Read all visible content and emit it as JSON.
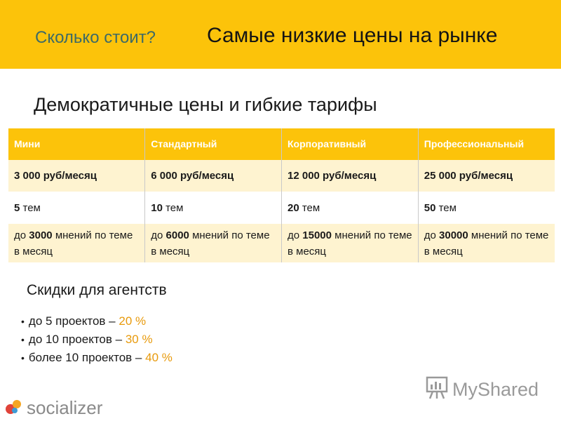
{
  "header": {
    "question": "Сколько стоит?",
    "title": "Самые низкие цены на рынке"
  },
  "subtitle": "Демократичные цены и гибкие тарифы",
  "pricing_table": {
    "columns": [
      "Мини",
      "Стандартный",
      "Корпоративный",
      "Профессиональный"
    ],
    "prices": [
      "3 000 руб/месяц",
      "6 000 руб/месяц",
      "12 000 руб/месяц",
      "25 000 руб/месяц"
    ],
    "topics": [
      {
        "count": "5",
        "unit": "тем"
      },
      {
        "count": "10",
        "unit": "тем"
      },
      {
        "count": "20",
        "unit": "тем"
      },
      {
        "count": "50",
        "unit": "тем"
      }
    ],
    "opinions": [
      {
        "prefix": "до",
        "count": "3000",
        "suffix": "мнений по теме в месяц"
      },
      {
        "prefix": "до",
        "count": "6000",
        "suffix": "мнений по теме в месяц"
      },
      {
        "prefix": "до",
        "count": "15000",
        "suffix": "мнений по теме в месяц"
      },
      {
        "prefix": "до",
        "count": "30000",
        "suffix": "мнений по теме в месяц"
      }
    ]
  },
  "discounts": {
    "title": "Скидки для агентств",
    "items": [
      {
        "text": "до 5 проектов –",
        "percent": "20 %"
      },
      {
        "text": "до 10 проектов –",
        "percent": "30 %"
      },
      {
        "text": "более 10 проектов –",
        "percent": "40 %"
      }
    ]
  },
  "logos": {
    "left": "socializer",
    "right": "MyShared"
  },
  "colors": {
    "accent": "#fcc30a",
    "row_tint": "#fef3d0",
    "percent": "#e89a0c",
    "question": "#3d6a66"
  }
}
